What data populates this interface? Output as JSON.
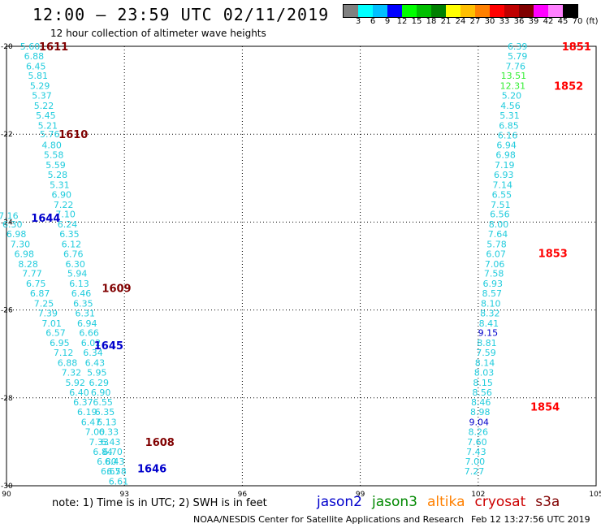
{
  "header": {
    "title": "12:00 – 23:59 UTC 02/11/2019",
    "subtitle": "12 hour collection of altimeter wave heights"
  },
  "legend_colorbar": {
    "colors": [
      "#808080",
      "#00ffff",
      "#00bfff",
      "#0000ff",
      "#00ff00",
      "#00bf00",
      "#008000",
      "#ffff00",
      "#ffbf00",
      "#ff8000",
      "#ff0000",
      "#bf0000",
      "#800000",
      "#ff00ff",
      "#ff80ff",
      "#000000"
    ],
    "labels": [
      "3",
      "6",
      "9",
      "12",
      "15",
      "18",
      "21",
      "24",
      "27",
      "30",
      "33",
      "36",
      "39",
      "42",
      "45",
      "70",
      "(ft)"
    ]
  },
  "footer": {
    "note": "note: 1) Time is in UTC; 2) SWH is in feet",
    "satellites": [
      {
        "name": "jason2",
        "color": "#0000cc"
      },
      {
        "name": "jason3",
        "color": "#008800"
      },
      {
        "name": "altika",
        "color": "#ff8000"
      },
      {
        "name": "cryosat",
        "color": "#cc0000"
      },
      {
        "name": "s3a",
        "color": "#800000"
      }
    ],
    "credit": "NOAA/NESDIS Center for Satellite Applications and Research",
    "timestamp": "Feb 12 13:27:56 UTC 2019"
  },
  "chart_data": {
    "type": "scatter",
    "xlabel": "",
    "ylabel": "",
    "xlim": [
      90,
      105
    ],
    "ylim": [
      -30,
      -20
    ],
    "x_ticks": [
      "90",
      "93",
      "96",
      "99",
      "102",
      "105"
    ],
    "y_ticks": [
      "-20",
      "-22",
      "-24",
      "-26",
      "-28",
      "-30"
    ],
    "grid": true,
    "track_labels": [
      {
        "text": "1611",
        "lon": 91.2,
        "lat": -20.0,
        "color": "#800000"
      },
      {
        "text": "1610",
        "lon": 91.7,
        "lat": -22.0,
        "color": "#800000"
      },
      {
        "text": "1644",
        "lon": 91.0,
        "lat": -23.9,
        "color": "#0000cc"
      },
      {
        "text": "1609",
        "lon": 92.8,
        "lat": -25.5,
        "color": "#800000"
      },
      {
        "text": "1645",
        "lon": 92.6,
        "lat": -26.8,
        "color": "#0000cc"
      },
      {
        "text": "1608",
        "lon": 93.9,
        "lat": -29.0,
        "color": "#800000"
      },
      {
        "text": "1646",
        "lon": 93.7,
        "lat": -29.6,
        "color": "#0000cc"
      },
      {
        "text": "1851",
        "lon": 104.5,
        "lat": -20.0,
        "color": "#ff0000"
      },
      {
        "text": "1852",
        "lon": 104.3,
        "lat": -20.9,
        "color": "#ff0000"
      },
      {
        "text": "1853",
        "lon": 103.9,
        "lat": -24.7,
        "color": "#ff0000"
      },
      {
        "text": "1854",
        "lon": 103.7,
        "lat": -28.2,
        "color": "#ff0000"
      }
    ],
    "series": [
      {
        "name": "1611/1610/1609/1608",
        "points": [
          {
            "lon": 90.6,
            "lat": -20.0,
            "v": "5.60"
          },
          {
            "lon": 90.7,
            "lat": -20.22,
            "v": "6.88"
          },
          {
            "lon": 90.75,
            "lat": -20.45,
            "v": "6.45"
          },
          {
            "lon": 90.8,
            "lat": -20.67,
            "v": "5.81"
          },
          {
            "lon": 90.85,
            "lat": -20.9,
            "v": "5.29"
          },
          {
            "lon": 90.9,
            "lat": -21.12,
            "v": "5.37"
          },
          {
            "lon": 90.95,
            "lat": -21.35,
            "v": "5.22"
          },
          {
            "lon": 91.0,
            "lat": -21.57,
            "v": "5.45"
          },
          {
            "lon": 91.05,
            "lat": -21.8,
            "v": "5.21"
          },
          {
            "lon": 91.1,
            "lat": -22.0,
            "v": "5.76"
          },
          {
            "lon": 91.15,
            "lat": -22.25,
            "v": "4.80"
          },
          {
            "lon": 91.2,
            "lat": -22.47,
            "v": "5.58"
          },
          {
            "lon": 91.25,
            "lat": -22.7,
            "v": "5.59"
          },
          {
            "lon": 91.3,
            "lat": -22.92,
            "v": "5.28"
          },
          {
            "lon": 91.35,
            "lat": -23.15,
            "v": "5.31"
          },
          {
            "lon": 91.4,
            "lat": -23.37,
            "v": "6.90"
          },
          {
            "lon": 91.45,
            "lat": -23.6,
            "v": "7.22"
          },
          {
            "lon": 91.5,
            "lat": -23.82,
            "v": "7.10"
          },
          {
            "lon": 91.55,
            "lat": -24.05,
            "v": "6.24"
          },
          {
            "lon": 91.6,
            "lat": -24.27,
            "v": "6.35"
          },
          {
            "lon": 91.65,
            "lat": -24.5,
            "v": "6.12"
          },
          {
            "lon": 91.7,
            "lat": -24.72,
            "v": "6.76"
          },
          {
            "lon": 91.75,
            "lat": -24.95,
            "v": "6.30"
          },
          {
            "lon": 91.8,
            "lat": -25.17,
            "v": "5.94"
          },
          {
            "lon": 91.85,
            "lat": -25.4,
            "v": "6.13"
          },
          {
            "lon": 91.9,
            "lat": -25.62,
            "v": "6.46"
          },
          {
            "lon": 91.95,
            "lat": -25.85,
            "v": "6.35"
          },
          {
            "lon": 92.0,
            "lat": -26.07,
            "v": "6.31"
          },
          {
            "lon": 92.05,
            "lat": -26.3,
            "v": "6.94"
          },
          {
            "lon": 92.1,
            "lat": -26.52,
            "v": "6.66"
          },
          {
            "lon": 92.15,
            "lat": -26.75,
            "v": "6.02"
          },
          {
            "lon": 92.2,
            "lat": -26.97,
            "v": "6.34"
          },
          {
            "lon": 92.25,
            "lat": -27.2,
            "v": "6.43"
          },
          {
            "lon": 92.3,
            "lat": -27.42,
            "v": "5.95"
          },
          {
            "lon": 92.35,
            "lat": -27.65,
            "v": "6.29"
          },
          {
            "lon": 92.4,
            "lat": -27.87,
            "v": "6.90"
          },
          {
            "lon": 92.45,
            "lat": -28.1,
            "v": "6.55"
          },
          {
            "lon": 92.5,
            "lat": -28.32,
            "v": "6.35"
          },
          {
            "lon": 92.55,
            "lat": -28.55,
            "v": "6.13"
          },
          {
            "lon": 92.6,
            "lat": -28.77,
            "v": "6.33"
          },
          {
            "lon": 92.65,
            "lat": -29.0,
            "v": "6.43"
          },
          {
            "lon": 92.7,
            "lat": -29.22,
            "v": "6.70"
          },
          {
            "lon": 92.75,
            "lat": -29.45,
            "v": "6.43"
          },
          {
            "lon": 92.8,
            "lat": -29.67,
            "v": "6.58"
          },
          {
            "lon": 92.85,
            "lat": -29.9,
            "v": "6.61"
          }
        ]
      },
      {
        "name": "1644/1645/1646",
        "points": [
          {
            "lon": 90.05,
            "lat": -23.85,
            "v": "7.16"
          },
          {
            "lon": 90.15,
            "lat": -24.05,
            "v": "6.30"
          },
          {
            "lon": 90.25,
            "lat": -24.27,
            "v": "6.98"
          },
          {
            "lon": 90.35,
            "lat": -24.5,
            "v": "7.30"
          },
          {
            "lon": 90.45,
            "lat": -24.72,
            "v": "6.98"
          },
          {
            "lon": 90.55,
            "lat": -24.95,
            "v": "8.28"
          },
          {
            "lon": 90.65,
            "lat": -25.17,
            "v": "7.77"
          },
          {
            "lon": 90.75,
            "lat": -25.4,
            "v": "6.75"
          },
          {
            "lon": 90.85,
            "lat": -25.62,
            "v": "6.87"
          },
          {
            "lon": 90.95,
            "lat": -25.85,
            "v": "7.25"
          },
          {
            "lon": 91.05,
            "lat": -26.07,
            "v": "7.39"
          },
          {
            "lon": 91.15,
            "lat": -26.3,
            "v": "7.01"
          },
          {
            "lon": 91.25,
            "lat": -26.52,
            "v": "6.57"
          },
          {
            "lon": 91.35,
            "lat": -26.75,
            "v": "6.95"
          },
          {
            "lon": 91.45,
            "lat": -26.97,
            "v": "7.12"
          },
          {
            "lon": 91.55,
            "lat": -27.2,
            "v": "6.88"
          },
          {
            "lon": 91.65,
            "lat": -27.42,
            "v": "7.32"
          },
          {
            "lon": 91.75,
            "lat": -27.65,
            "v": "5.92"
          },
          {
            "lon": 91.85,
            "lat": -27.87,
            "v": "6.40"
          },
          {
            "lon": 91.95,
            "lat": -28.1,
            "v": "6.37"
          },
          {
            "lon": 92.05,
            "lat": -28.32,
            "v": "6.19"
          },
          {
            "lon": 92.15,
            "lat": -28.55,
            "v": "6.47"
          },
          {
            "lon": 92.25,
            "lat": -28.77,
            "v": "7.00"
          },
          {
            "lon": 92.35,
            "lat": -29.0,
            "v": "7.33"
          },
          {
            "lon": 92.45,
            "lat": -29.22,
            "v": "6.84"
          },
          {
            "lon": 92.55,
            "lat": -29.45,
            "v": "6.80"
          },
          {
            "lon": 92.65,
            "lat": -29.67,
            "v": "6.67"
          }
        ]
      },
      {
        "name": "1851/1852/1853/1854",
        "points": [
          {
            "lon": 103.0,
            "lat": -20.0,
            "v": "6.39"
          },
          {
            "lon": 103.0,
            "lat": -20.22,
            "v": "5.79"
          },
          {
            "lon": 102.95,
            "lat": -20.45,
            "v": "7.76"
          },
          {
            "lon": 102.9,
            "lat": -20.67,
            "v": "13.51"
          },
          {
            "lon": 102.88,
            "lat": -20.9,
            "v": "12.31"
          },
          {
            "lon": 102.85,
            "lat": -21.12,
            "v": "5.20"
          },
          {
            "lon": 102.82,
            "lat": -21.35,
            "v": "4.56"
          },
          {
            "lon": 102.8,
            "lat": -21.57,
            "v": "5.31"
          },
          {
            "lon": 102.78,
            "lat": -21.8,
            "v": "6.85"
          },
          {
            "lon": 102.75,
            "lat": -22.02,
            "v": "6.16"
          },
          {
            "lon": 102.72,
            "lat": -22.25,
            "v": "6.94"
          },
          {
            "lon": 102.7,
            "lat": -22.47,
            "v": "6.98"
          },
          {
            "lon": 102.67,
            "lat": -22.7,
            "v": "7.19"
          },
          {
            "lon": 102.65,
            "lat": -22.92,
            "v": "6.93"
          },
          {
            "lon": 102.62,
            "lat": -23.15,
            "v": "7.14"
          },
          {
            "lon": 102.6,
            "lat": -23.37,
            "v": "6.55"
          },
          {
            "lon": 102.57,
            "lat": -23.6,
            "v": "7.51"
          },
          {
            "lon": 102.55,
            "lat": -23.82,
            "v": "6.56"
          },
          {
            "lon": 102.52,
            "lat": -24.05,
            "v": "8.00"
          },
          {
            "lon": 102.5,
            "lat": -24.27,
            "v": "7.64"
          },
          {
            "lon": 102.47,
            "lat": -24.5,
            "v": "5.78"
          },
          {
            "lon": 102.45,
            "lat": -24.72,
            "v": "6.07"
          },
          {
            "lon": 102.42,
            "lat": -24.95,
            "v": "7.06"
          },
          {
            "lon": 102.4,
            "lat": -25.17,
            "v": "7.58"
          },
          {
            "lon": 102.37,
            "lat": -25.4,
            "v": "6.93"
          },
          {
            "lon": 102.35,
            "lat": -25.62,
            "v": "8.57"
          },
          {
            "lon": 102.32,
            "lat": -25.85,
            "v": "8.10"
          },
          {
            "lon": 102.3,
            "lat": -26.07,
            "v": "8.32"
          },
          {
            "lon": 102.27,
            "lat": -26.3,
            "v": "8.41"
          },
          {
            "lon": 102.25,
            "lat": -26.52,
            "v": "9.15"
          },
          {
            "lon": 102.22,
            "lat": -26.75,
            "v": "8.81"
          },
          {
            "lon": 102.2,
            "lat": -26.97,
            "v": "7.59"
          },
          {
            "lon": 102.17,
            "lat": -27.2,
            "v": "8.14"
          },
          {
            "lon": 102.15,
            "lat": -27.42,
            "v": "8.03"
          },
          {
            "lon": 102.12,
            "lat": -27.65,
            "v": "8.15"
          },
          {
            "lon": 102.1,
            "lat": -27.87,
            "v": "8.56"
          },
          {
            "lon": 102.07,
            "lat": -28.1,
            "v": "8.46"
          },
          {
            "lon": 102.05,
            "lat": -28.32,
            "v": "8.98"
          },
          {
            "lon": 102.02,
            "lat": -28.55,
            "v": "9.04"
          },
          {
            "lon": 102.0,
            "lat": -28.77,
            "v": "8.26"
          },
          {
            "lon": 101.97,
            "lat": -29.0,
            "v": "7.60"
          },
          {
            "lon": 101.95,
            "lat": -29.22,
            "v": "7.43"
          },
          {
            "lon": 101.92,
            "lat": -29.45,
            "v": "7.00"
          },
          {
            "lon": 101.9,
            "lat": -29.67,
            "v": "7.27"
          }
        ]
      }
    ]
  }
}
